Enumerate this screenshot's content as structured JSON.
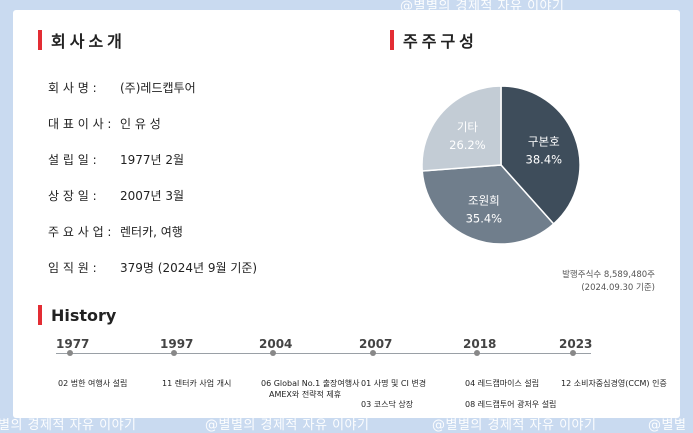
{
  "watermarks": {
    "top": "@별별의 경제적 자유 이야기",
    "bottom": [
      "별의 경제적 자유 이야기",
      "@별별의 경제적 자유 이야기",
      "@별별의 경제적 자유 이야기",
      "@별별"
    ]
  },
  "company": {
    "title": "회사소개",
    "rows": [
      {
        "label": "회 사 명 :",
        "value": "(주)레드캡투어"
      },
      {
        "label": "대 표 이 사 :",
        "value": "인 유 성"
      },
      {
        "label": "설 립 일 :",
        "value": "1977년 2월"
      },
      {
        "label": "상 장 일 :",
        "value": "2007년 3월"
      },
      {
        "label": "주 요 사 업 :",
        "value": "렌터카, 여행"
      },
      {
        "label": "임 직 원 :",
        "value": "379명 (2024년 9월 기준)"
      }
    ]
  },
  "shareholders": {
    "title": "주주구성",
    "shares_issued": "발행주식수 8,589,480주",
    "as_of": "(2024.09.30 기준)"
  },
  "chart_data": {
    "type": "pie",
    "slices": [
      {
        "label": "구본호",
        "value": 38.4,
        "value_label": "38.4%",
        "color": "#3e4d5b"
      },
      {
        "label": "조원희",
        "value": 35.4,
        "value_label": "35.4%",
        "color": "#707e8c"
      },
      {
        "label": "기타",
        "value": 26.2,
        "value_label": "26.2%",
        "color": "#c3ccd5"
      }
    ]
  },
  "history": {
    "title": "History",
    "items": [
      {
        "year": "1977",
        "events": [
          "02 법한 여행사 설립"
        ]
      },
      {
        "year": "1997",
        "events": [
          "11 렌터카 사업 개시"
        ]
      },
      {
        "year": "2004",
        "events": [
          "06 Global No.1 출장여행사",
          "AMEX와 전략적 제휴"
        ]
      },
      {
        "year": "2007",
        "events": [
          "01 사명 및 CI 변경",
          "03 코스닥 상장"
        ]
      },
      {
        "year": "2018",
        "events": [
          "04 레드캡마이스 설립",
          "08 레드캡투어 광저우 설립"
        ]
      },
      {
        "year": "2023",
        "events": [
          "12 소비자중심경영(CCM) 인증"
        ]
      }
    ]
  }
}
